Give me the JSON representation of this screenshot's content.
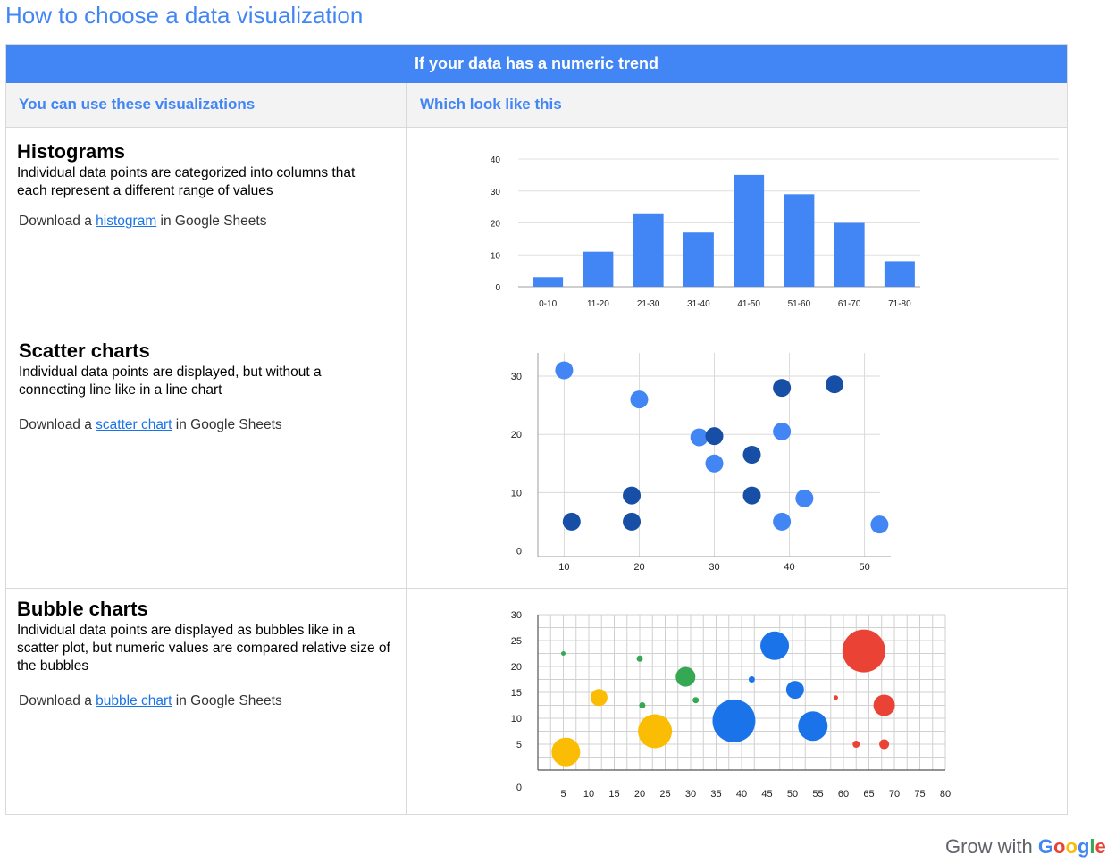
{
  "page_title": "How to choose a data visualization",
  "table": {
    "header": "If your data has a numeric trend",
    "col1_header": "You can use these visualizations",
    "col2_header": "Which look like this"
  },
  "sections": [
    {
      "title": "Histograms",
      "description": "Individual data points are categorized into columns that each represent a different range of values",
      "download_prefix": "Download a",
      "link_text": "histogram",
      "download_suffix": "in Google Sheets"
    },
    {
      "title": "Scatter charts",
      "description": "Individual data points are displayed, but without a connecting line like in a line chart",
      "download_prefix": "Download a",
      "link_text": "scatter chart",
      "download_suffix": "in Google Sheets"
    },
    {
      "title": "Bubble charts",
      "description": "Individual data points are displayed as bubbles like in a scatter plot, but numeric values are compared relative size of the bubbles",
      "download_prefix": "Download a",
      "link_text": "bubble chart",
      "download_suffix": "in Google Sheets"
    }
  ],
  "brand": {
    "prefix": "Grow with",
    "google": "Google"
  },
  "chart_data": [
    {
      "type": "bar",
      "categories": [
        "0-10",
        "11-20",
        "21-30",
        "31-40",
        "41-50",
        "51-60",
        "61-70",
        "71-80"
      ],
      "values": [
        3,
        11,
        23,
        17,
        35,
        29,
        20,
        8
      ],
      "ylim": [
        0,
        40
      ],
      "yticks": [
        0,
        10,
        20,
        30,
        40
      ],
      "color": "#4285f4"
    },
    {
      "type": "scatter",
      "xticks": [
        10,
        20,
        30,
        40,
        50
      ],
      "yticks": [
        0,
        10,
        20,
        30
      ],
      "xlim": [
        6.5,
        53.5
      ],
      "ylim": [
        -1,
        34
      ],
      "colors": {
        "light": "#4285f4",
        "dark": "#174ea6"
      },
      "points": [
        {
          "x": 10,
          "y": 31,
          "c": "light"
        },
        {
          "x": 11,
          "y": 5,
          "c": "dark"
        },
        {
          "x": 19,
          "y": 9.5,
          "c": "dark"
        },
        {
          "x": 19,
          "y": 5,
          "c": "dark"
        },
        {
          "x": 20,
          "y": 26,
          "c": "light"
        },
        {
          "x": 28,
          "y": 19.5,
          "c": "light"
        },
        {
          "x": 30,
          "y": 19.7,
          "c": "dark"
        },
        {
          "x": 30,
          "y": 15,
          "c": "light"
        },
        {
          "x": 35,
          "y": 16.5,
          "c": "dark"
        },
        {
          "x": 35,
          "y": 9.5,
          "c": "dark"
        },
        {
          "x": 39,
          "y": 20.5,
          "c": "light"
        },
        {
          "x": 39,
          "y": 28,
          "c": "dark"
        },
        {
          "x": 39,
          "y": 5,
          "c": "light"
        },
        {
          "x": 42,
          "y": 9,
          "c": "light"
        },
        {
          "x": 46,
          "y": 28.6,
          "c": "dark"
        },
        {
          "x": 52,
          "y": 4.5,
          "c": "light"
        }
      ]
    },
    {
      "type": "scatter",
      "xticks": [
        5,
        10,
        15,
        20,
        25,
        30,
        35,
        40,
        45,
        50,
        55,
        60,
        65,
        70,
        75,
        80
      ],
      "yticks": [
        0,
        5,
        10,
        15,
        20,
        25,
        30
      ],
      "xlim": [
        0,
        80
      ],
      "ylim": [
        0,
        30
      ],
      "colors": {
        "yellow": "#fbbc04",
        "green": "#34a853",
        "blue": "#1a73e8",
        "red": "#ea4335"
      },
      "points": [
        {
          "x": 5.5,
          "y": 3.5,
          "size": 16,
          "c": "yellow"
        },
        {
          "x": 5,
          "y": 22.5,
          "size": 2.5,
          "c": "green"
        },
        {
          "x": 12,
          "y": 14,
          "size": 9.5,
          "c": "yellow"
        },
        {
          "x": 20,
          "y": 21.5,
          "size": 3.5,
          "c": "green"
        },
        {
          "x": 20.5,
          "y": 12.5,
          "size": 3.5,
          "c": "green"
        },
        {
          "x": 23,
          "y": 7.5,
          "size": 19,
          "c": "yellow"
        },
        {
          "x": 29,
          "y": 18,
          "size": 11,
          "c": "green"
        },
        {
          "x": 31,
          "y": 13.5,
          "size": 3.5,
          "c": "green"
        },
        {
          "x": 38.5,
          "y": 9.5,
          "size": 24,
          "c": "blue"
        },
        {
          "x": 42,
          "y": 17.5,
          "size": 3.5,
          "c": "blue"
        },
        {
          "x": 46.5,
          "y": 24,
          "size": 16,
          "c": "blue"
        },
        {
          "x": 50.5,
          "y": 15.5,
          "size": 10,
          "c": "blue"
        },
        {
          "x": 54,
          "y": 8.5,
          "size": 16.5,
          "c": "blue"
        },
        {
          "x": 58.5,
          "y": 14,
          "size": 2.5,
          "c": "red"
        },
        {
          "x": 64,
          "y": 23,
          "size": 24,
          "c": "red"
        },
        {
          "x": 62.5,
          "y": 5,
          "size": 4,
          "c": "red"
        },
        {
          "x": 68,
          "y": 12.5,
          "size": 12,
          "c": "red"
        },
        {
          "x": 68,
          "y": 5,
          "size": 5.5,
          "c": "red"
        }
      ]
    }
  ]
}
